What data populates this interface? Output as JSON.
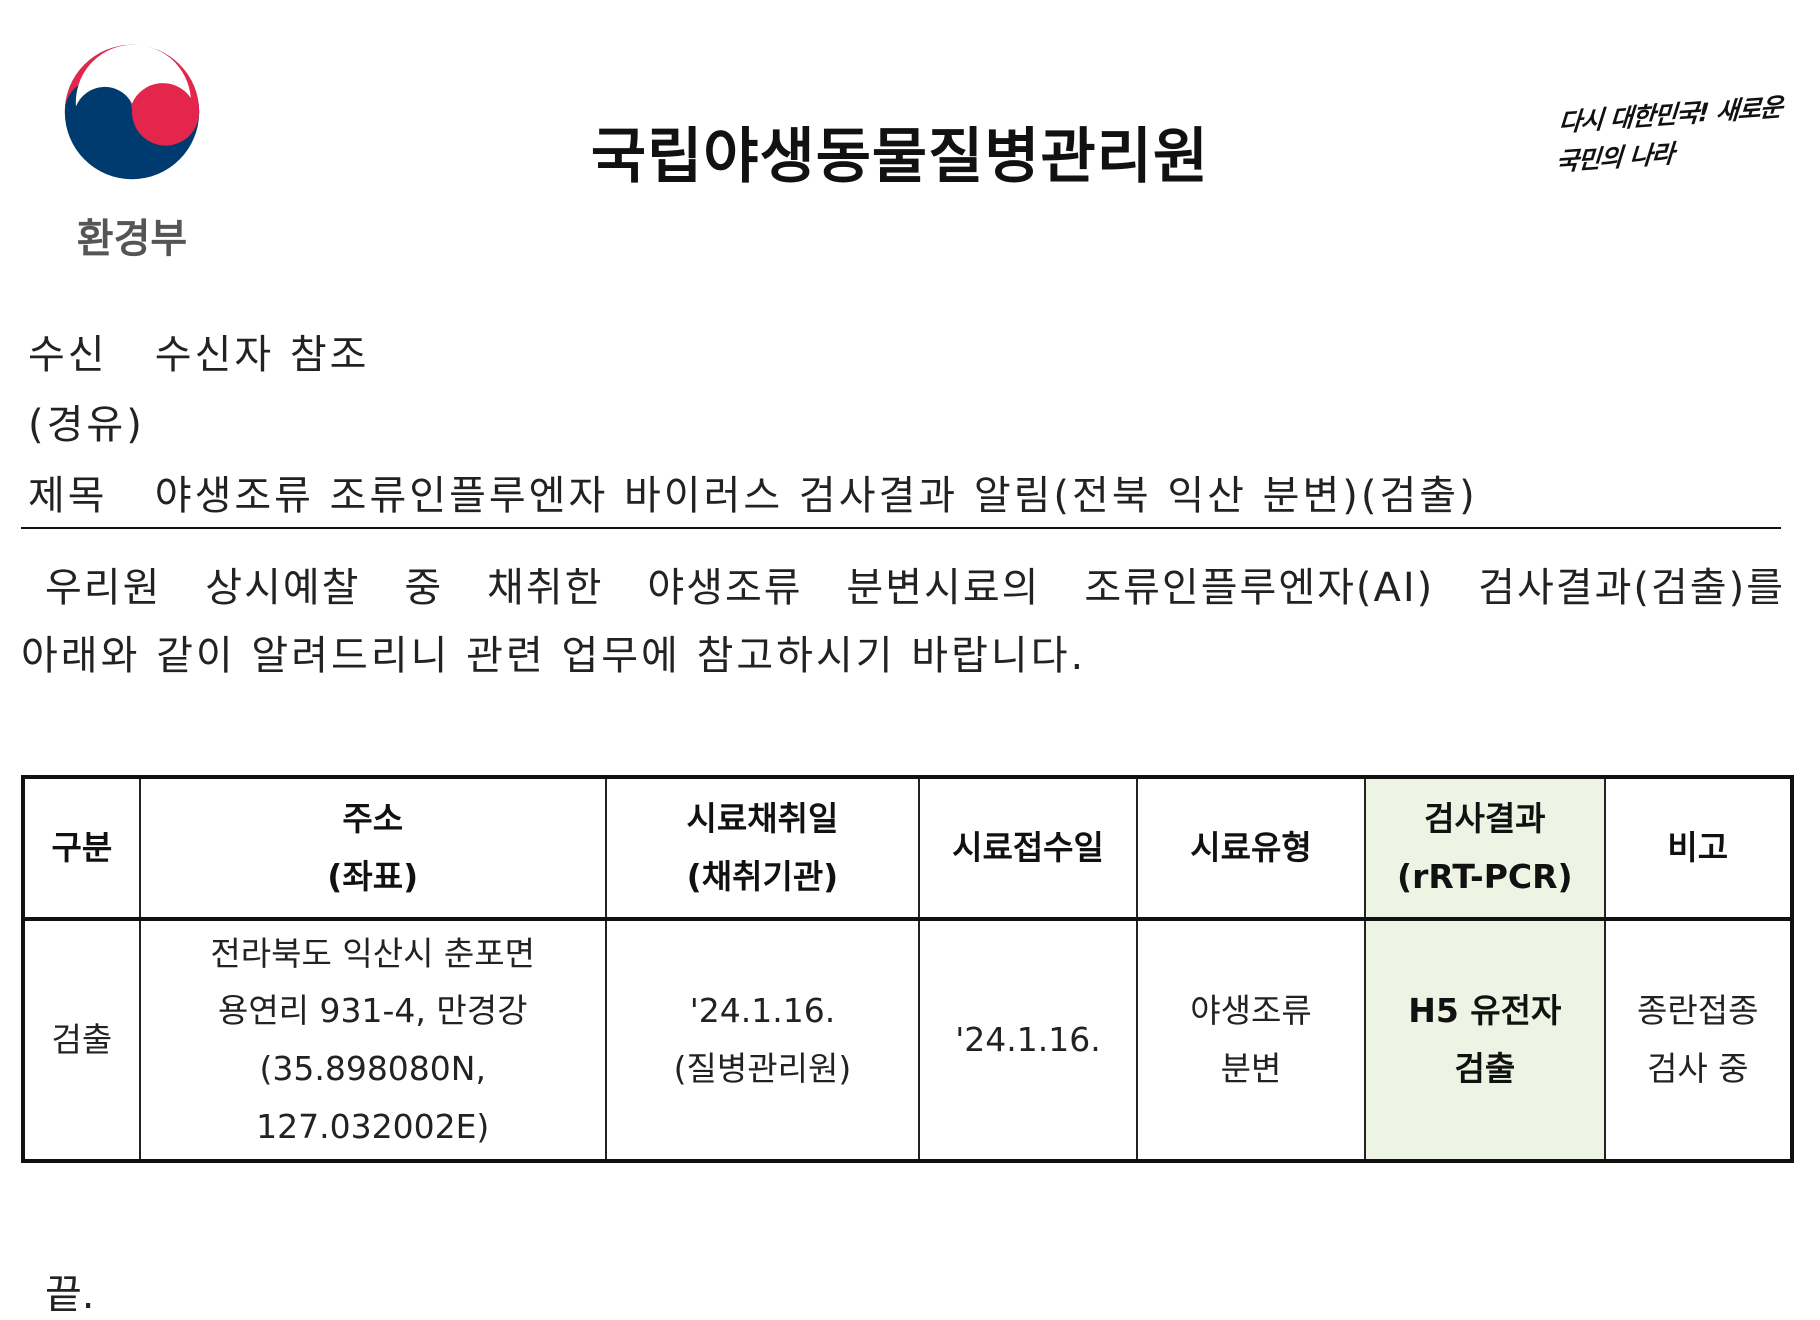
{
  "header": {
    "ministry": "환경부",
    "title": "국립야생동물질병관리원",
    "slogan": "다시 대한민국! 새로운 국민의 나라",
    "logo_colors": {
      "blue": "#003b6f",
      "red": "#e4254c"
    }
  },
  "meta": {
    "recipient_label": "수신",
    "recipient_value": "수신자 참조",
    "via_label": "(경유)",
    "subject_label": "제목",
    "subject_value": "야생조류 조류인플루엔자 바이러스 검사결과 알림(전북 익산 분변)(검출)"
  },
  "body": {
    "line1": "우리원 상시예찰 중 채취한 야생조류 분변시료의 조류인플루엔자(AI) 검사결과(검출)를",
    "line2": "아래와 같이 알려드리니 관련 업무에 참고하시기 바랍니다."
  },
  "table": {
    "headers": [
      [
        "구분"
      ],
      [
        "주소",
        "(좌표)"
      ],
      [
        "시료채취일",
        "(채취기관)"
      ],
      [
        "시료접수일"
      ],
      [
        "시료유형"
      ],
      [
        "검사결과",
        "(rRT-PCR)"
      ],
      [
        "비고"
      ]
    ],
    "rows": [
      [
        [
          "검출"
        ],
        [
          "전라북도 익산시 춘포면",
          "용연리 931-4, 만경강",
          "(35.898080N, 127.032002E)"
        ],
        [
          "'24.1.16.",
          "(질병관리원)"
        ],
        [
          "'24.1.16."
        ],
        [
          "야생조류",
          "분변"
        ],
        [
          "H5 유전자",
          "검출"
        ],
        [
          "종란접종",
          "검사 중"
        ]
      ]
    ],
    "highlight_color": "#eef4e4"
  },
  "footer": {
    "end": "끝."
  }
}
